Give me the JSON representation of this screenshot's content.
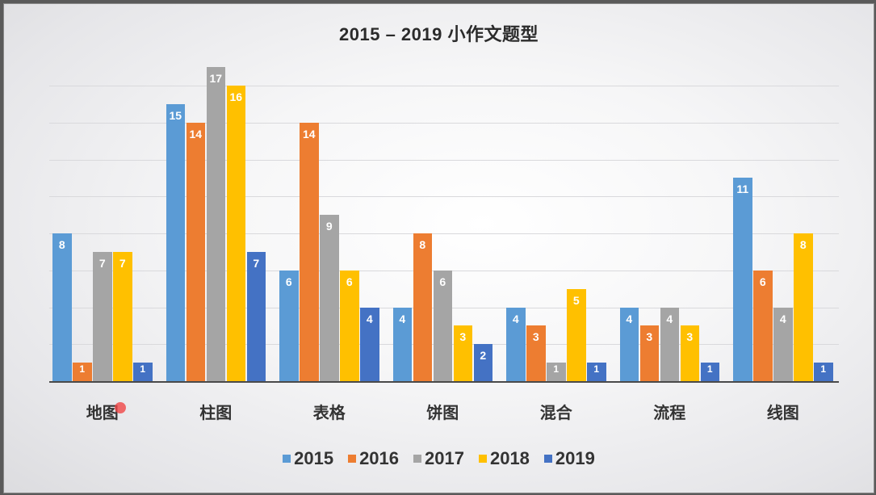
{
  "chart_data": {
    "type": "bar",
    "title": "2015 – 2019 小作文题型",
    "xlabel": "",
    "ylabel": "",
    "ylim": [
      0,
      17
    ],
    "grid": true,
    "legend_position": "bottom",
    "categories": [
      "地图",
      "柱图",
      "表格",
      "饼图",
      "混合",
      "流程",
      "线图"
    ],
    "series": [
      {
        "name": "2015",
        "color": "#5b9bd5",
        "values": [
          8,
          15,
          6,
          4,
          4,
          4,
          11
        ]
      },
      {
        "name": "2016",
        "color": "#ed7d31",
        "values": [
          1,
          14,
          14,
          8,
          3,
          3,
          6
        ]
      },
      {
        "name": "2017",
        "color": "#a5a5a5",
        "values": [
          7,
          17,
          9,
          6,
          1,
          4,
          4
        ]
      },
      {
        "name": "2018",
        "color": "#ffc000",
        "values": [
          7,
          16,
          6,
          3,
          5,
          3,
          8
        ]
      },
      {
        "name": "2019",
        "color": "#4472c4",
        "values": [
          1,
          7,
          4,
          2,
          1,
          1,
          1
        ]
      }
    ]
  }
}
